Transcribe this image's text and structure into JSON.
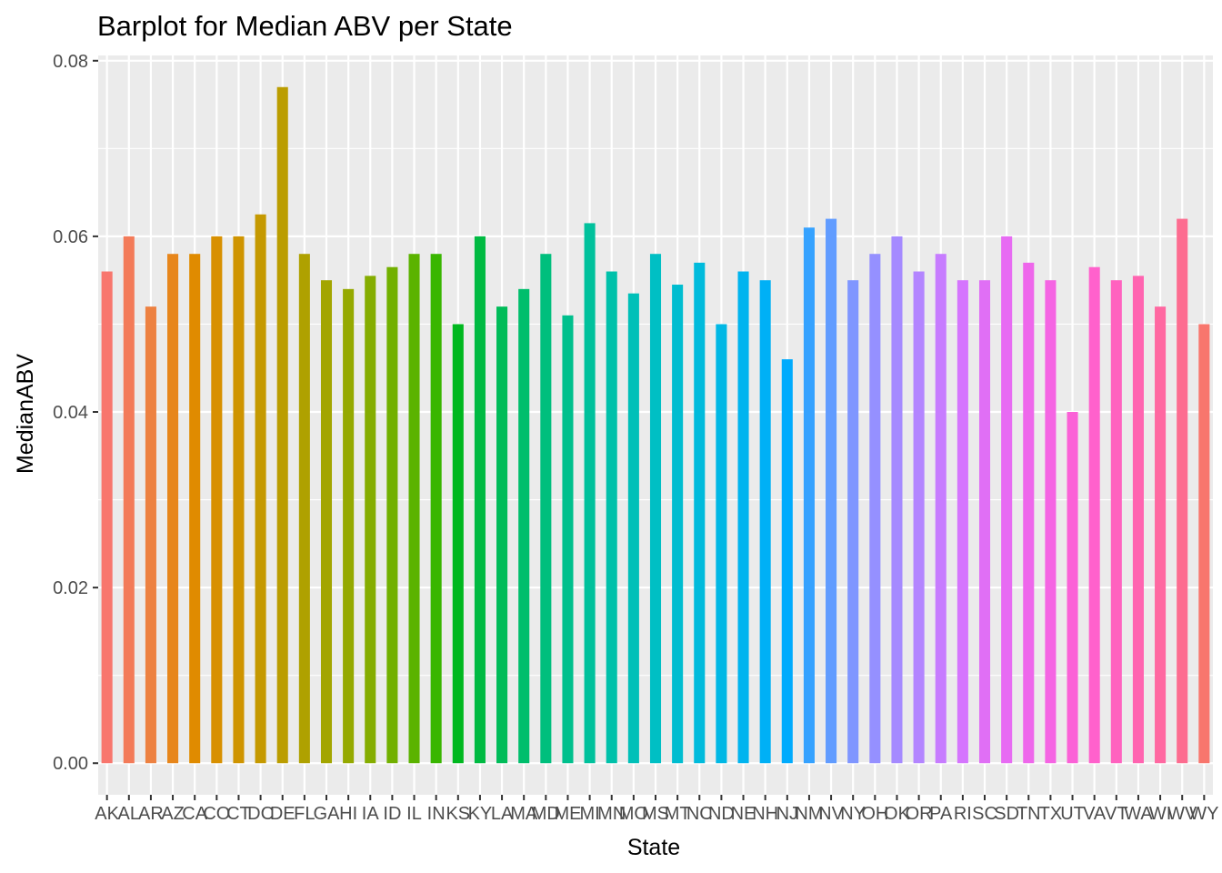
{
  "chart_data": {
    "type": "bar",
    "title": "Barplot for Median ABV per State",
    "xlabel": "State",
    "ylabel": "MedianABV",
    "ylim": [
      -0.0036,
      0.0806
    ],
    "yticks": [
      0.0,
      0.02,
      0.04,
      0.06,
      0.08
    ],
    "ytick_labels": [
      "0.00",
      "0.02",
      "0.04",
      "0.06",
      "0.08"
    ],
    "grid": true,
    "legend": "none",
    "categories": [
      "AK",
      "AL",
      "AR",
      "AZ",
      "CA",
      "CO",
      "CT",
      "DC",
      "DE",
      "FL",
      "GA",
      "HI",
      "IA",
      "ID",
      "IL",
      "IN",
      "KS",
      "KY",
      "LA",
      "MA",
      "MD",
      "ME",
      "MI",
      "MN",
      "MO",
      "MS",
      "MT",
      "NC",
      "ND",
      "NE",
      "NH",
      "NJ",
      "NM",
      "NV",
      "NY",
      "OH",
      "OK",
      "OR",
      "PA",
      "RI",
      "SC",
      "SD",
      "TN",
      "TX",
      "UT",
      "VA",
      "VT",
      "WA",
      "WI",
      "WV",
      "WY"
    ],
    "values": [
      0.056,
      0.06,
      0.052,
      0.058,
      0.058,
      0.06,
      0.06,
      0.0625,
      0.077,
      0.058,
      0.055,
      0.054,
      0.0555,
      0.0565,
      0.058,
      0.058,
      0.05,
      0.06,
      0.052,
      0.054,
      0.058,
      0.051,
      0.0615,
      0.056,
      0.0535,
      0.058,
      0.0545,
      0.057,
      0.05,
      0.056,
      0.055,
      0.046,
      0.061,
      0.062,
      0.055,
      0.058,
      0.06,
      0.056,
      0.058,
      0.055,
      0.055,
      0.06,
      0.057,
      0.055,
      0.04,
      0.0565,
      0.055,
      0.0555,
      0.052,
      0.062,
      0.05
    ],
    "colors": [
      "#F8766D",
      "#F37B59",
      "#ED8141",
      "#E7861B",
      "#E08B00",
      "#D89000",
      "#CF9400",
      "#C59900",
      "#BB9D00",
      "#AFA100",
      "#A3A500",
      "#95A900",
      "#85AD00",
      "#72B000",
      "#5BB300",
      "#39B600",
      "#00B81F",
      "#00BA42",
      "#00BC59",
      "#00BE6C",
      "#00BF7D",
      "#00C08D",
      "#00C19C",
      "#00C1AA",
      "#00C0B8",
      "#00BFC4",
      "#00BDD0",
      "#00BBDC",
      "#00B8E5",
      "#00B4EF",
      "#00B0F6",
      "#00ABFD",
      "#35A2FF",
      "#619CFF",
      "#7F96FF",
      "#9590FF",
      "#A58AFF",
      "#B385FF",
      "#C77CFF",
      "#D575FE",
      "#E06FF5",
      "#E76BF3",
      "#EE67EB",
      "#F564E3",
      "#FB61D7",
      "#FF61CC",
      "#FF62BF",
      "#FF64B0",
      "#FF68A1",
      "#FD6C90",
      "#F8766D"
    ]
  }
}
